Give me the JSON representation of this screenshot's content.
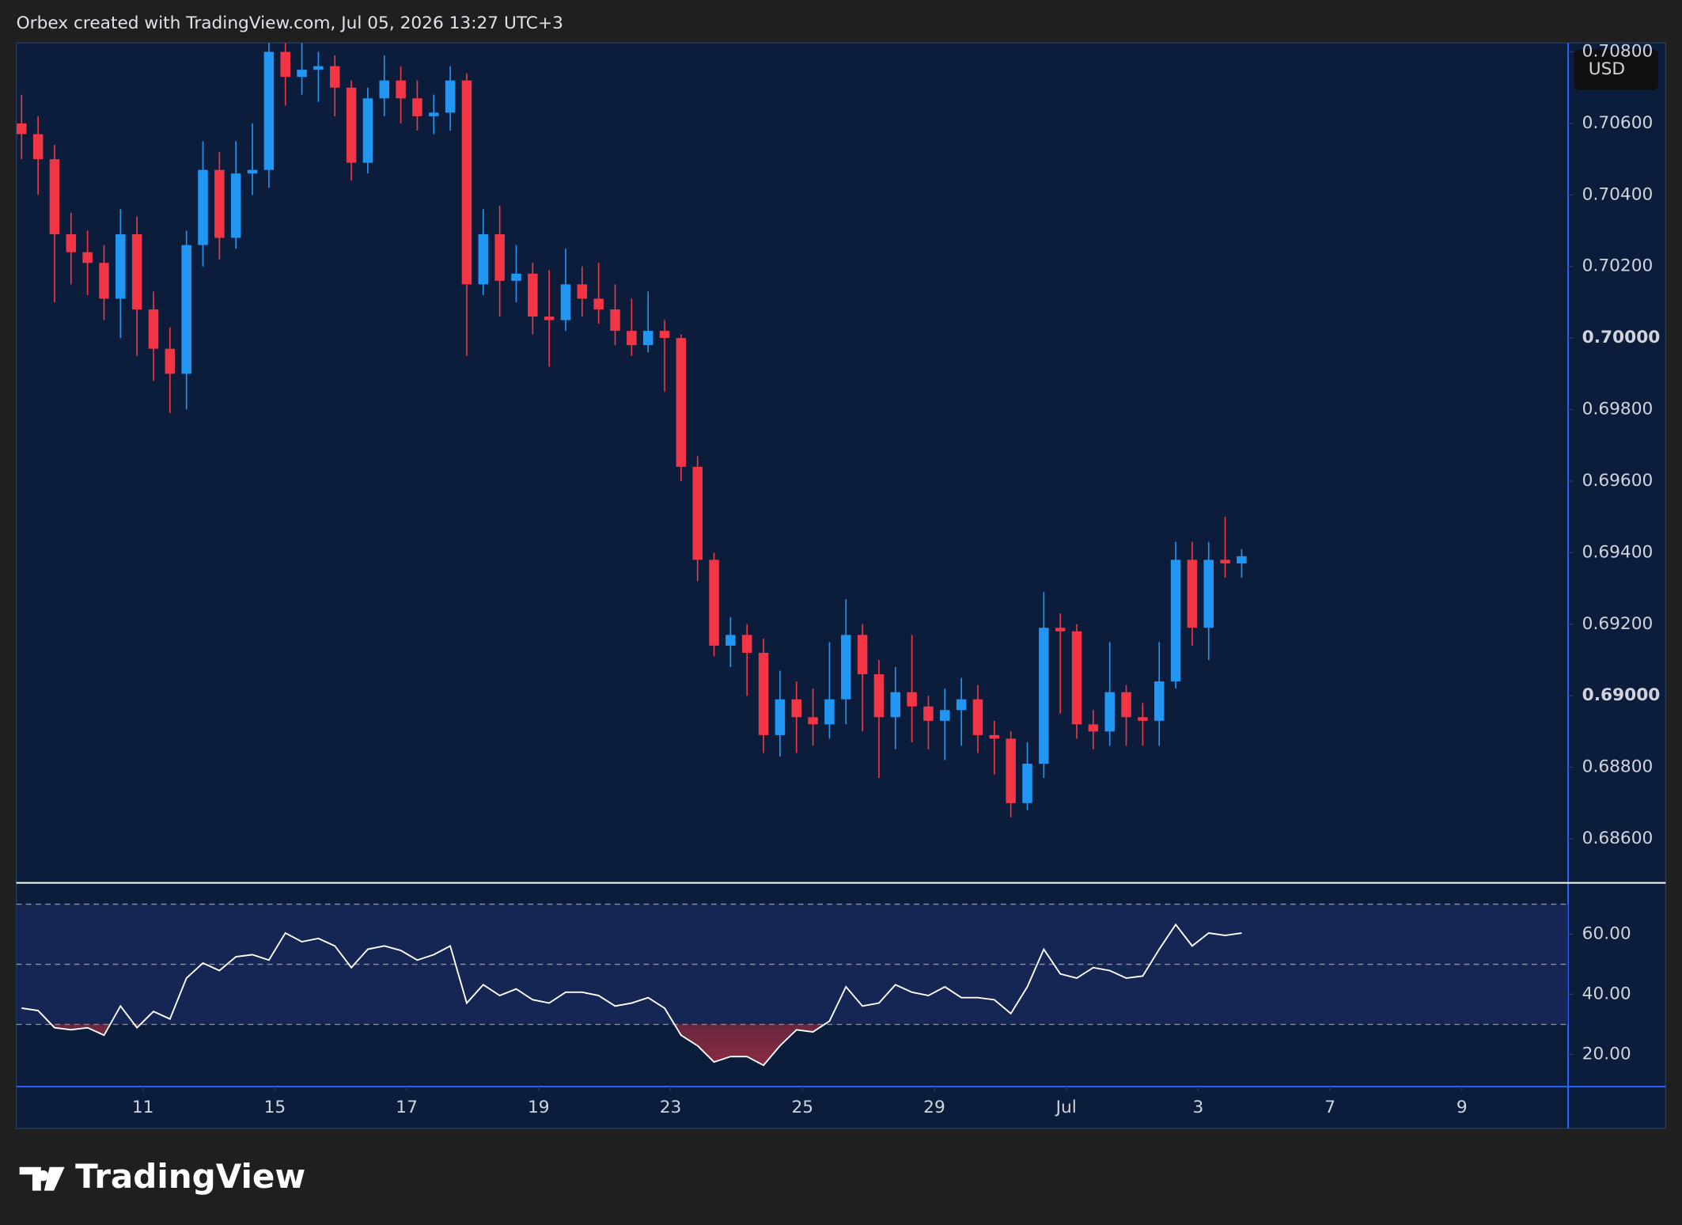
{
  "header": "Orbex created with TradingView.com, Jul 05, 2026 13:27 UTC+3",
  "brand": "TradingView",
  "chart_data": [
    {
      "type": "candlestick",
      "currency": "USD",
      "up_color": "#2196f3",
      "down_color": "#f23645",
      "x": [
        -1.84,
        -1.59,
        -1.34,
        -1.09,
        -0.84,
        -0.59,
        -0.34,
        -0.09,
        0.16,
        0.41,
        0.66,
        0.91,
        1.16,
        1.41,
        1.66,
        1.91,
        2.16,
        2.41,
        2.66,
        2.91,
        3.16,
        3.41,
        3.66,
        3.91,
        4.16,
        4.41,
        4.66,
        4.91,
        5.16,
        5.41,
        5.66,
        5.91,
        6.16,
        6.41,
        6.66,
        6.91,
        7.16,
        7.41,
        7.66,
        7.91,
        8.16,
        8.41,
        8.66,
        8.91,
        9.16,
        9.41,
        9.66,
        9.91,
        10.16,
        10.41,
        10.66,
        10.91,
        11.16,
        11.41,
        11.66,
        11.91,
        12.16,
        12.41,
        12.66,
        12.91,
        13.16,
        13.41,
        13.66,
        13.91,
        14.16,
        14.41,
        14.66,
        14.91,
        15.16,
        15.41,
        15.66,
        15.91,
        16.16,
        16.41,
        16.66
      ],
      "open": [
        0.706,
        0.7057,
        0.705,
        0.7029,
        0.7024,
        0.7021,
        0.7011,
        0.7029,
        0.7008,
        0.6997,
        0.699,
        0.7026,
        0.7047,
        0.7028,
        0.7046,
        0.7047,
        0.708,
        0.7073,
        0.7075,
        0.7076,
        0.707,
        0.7049,
        0.7067,
        0.7072,
        0.7067,
        0.7062,
        0.7063,
        0.7072,
        0.7015,
        0.7029,
        0.7016,
        0.7018,
        0.7006,
        0.7005,
        0.7015,
        0.7011,
        0.7008,
        0.7002,
        0.6998,
        0.7002,
        0.7,
        0.6964,
        0.6938,
        0.6914,
        0.6917,
        0.6912,
        0.6889,
        0.6899,
        0.6894,
        0.6892,
        0.6899,
        0.6917,
        0.6906,
        0.6894,
        0.6901,
        0.6897,
        0.6893,
        0.6896,
        0.6899,
        0.6889,
        0.6888,
        0.687,
        0.6881,
        0.6919,
        0.6918,
        0.6892,
        0.689,
        0.6901,
        0.6894,
        0.6893,
        0.6904,
        0.6938,
        0.6919,
        0.6938,
        0.6937
      ],
      "high": [
        0.7068,
        0.7062,
        0.7054,
        0.7035,
        0.703,
        0.7026,
        0.7036,
        0.7034,
        0.7013,
        0.7003,
        0.703,
        0.7055,
        0.7052,
        0.7055,
        0.706,
        0.709,
        0.7088,
        0.709,
        0.708,
        0.7079,
        0.7072,
        0.707,
        0.7079,
        0.7076,
        0.7072,
        0.7068,
        0.7076,
        0.7074,
        0.7036,
        0.7037,
        0.7026,
        0.7021,
        0.7019,
        0.7025,
        0.702,
        0.7021,
        0.7015,
        0.7011,
        0.7013,
        0.7005,
        0.7001,
        0.6967,
        0.694,
        0.6922,
        0.692,
        0.6916,
        0.6907,
        0.6904,
        0.6902,
        0.6915,
        0.6927,
        0.692,
        0.691,
        0.6908,
        0.6917,
        0.69,
        0.6902,
        0.6905,
        0.6903,
        0.6893,
        0.689,
        0.6887,
        0.6929,
        0.6923,
        0.692,
        0.6896,
        0.6915,
        0.6903,
        0.6898,
        0.6915,
        0.6943,
        0.6943,
        0.6943,
        0.695,
        0.6941
      ],
      "low": [
        0.705,
        0.704,
        0.701,
        0.7015,
        0.7012,
        0.7005,
        0.7,
        0.6995,
        0.6988,
        0.6979,
        0.698,
        0.702,
        0.7022,
        0.7025,
        0.704,
        0.7042,
        0.7065,
        0.7068,
        0.7066,
        0.7062,
        0.7044,
        0.7046,
        0.7062,
        0.706,
        0.7058,
        0.7057,
        0.7058,
        0.6995,
        0.7012,
        0.7006,
        0.701,
        0.7001,
        0.6992,
        0.7002,
        0.7006,
        0.7004,
        0.6998,
        0.6995,
        0.6996,
        0.6985,
        0.696,
        0.6932,
        0.6911,
        0.6908,
        0.69,
        0.6884,
        0.6883,
        0.6884,
        0.6886,
        0.6888,
        0.6892,
        0.689,
        0.6877,
        0.6885,
        0.6887,
        0.6885,
        0.6882,
        0.6886,
        0.6884,
        0.6878,
        0.6866,
        0.6868,
        0.6877,
        0.6895,
        0.6888,
        0.6885,
        0.6886,
        0.6886,
        0.6886,
        0.6886,
        0.6902,
        0.6914,
        0.691,
        0.6933,
        0.6933
      ],
      "close": [
        0.7057,
        0.705,
        0.7029,
        0.7024,
        0.7021,
        0.7011,
        0.7029,
        0.7008,
        0.6997,
        0.699,
        0.7026,
        0.7047,
        0.7028,
        0.7046,
        0.7047,
        0.708,
        0.7073,
        0.7075,
        0.7076,
        0.707,
        0.7049,
        0.7067,
        0.7072,
        0.7067,
        0.7062,
        0.7063,
        0.7072,
        0.7015,
        0.7029,
        0.7016,
        0.7018,
        0.7006,
        0.7005,
        0.7015,
        0.7011,
        0.7008,
        0.7002,
        0.6998,
        0.7002,
        0.7,
        0.6964,
        0.6938,
        0.6914,
        0.6917,
        0.6912,
        0.6889,
        0.6899,
        0.6894,
        0.6892,
        0.6899,
        0.6917,
        0.6906,
        0.6894,
        0.6901,
        0.6897,
        0.6893,
        0.6896,
        0.6899,
        0.6889,
        0.6888,
        0.687,
        0.6881,
        0.6919,
        0.6918,
        0.6892,
        0.689,
        0.6901,
        0.6894,
        0.6893,
        0.6904,
        0.6938,
        0.6919,
        0.6938,
        0.6937,
        0.6939
      ],
      "xlim": [
        -1.92,
        21.61
      ],
      "xticks": [
        {
          "value": 0,
          "label": "11"
        },
        {
          "value": 2,
          "label": "15"
        },
        {
          "value": 4,
          "label": "17"
        },
        {
          "value": 6,
          "label": "19"
        },
        {
          "value": 8,
          "label": "23"
        },
        {
          "value": 10,
          "label": "25"
        },
        {
          "value": 12,
          "label": "29"
        },
        {
          "value": 14,
          "label": "Jul"
        },
        {
          "value": 16,
          "label": "3"
        },
        {
          "value": 18,
          "label": "7"
        },
        {
          "value": 20,
          "label": "9"
        }
      ],
      "ylim": [
        0.6848,
        0.70825
      ],
      "yticks": [
        {
          "value": 0.708,
          "label": "0.70800"
        },
        {
          "value": 0.706,
          "label": "0.70600"
        },
        {
          "value": 0.704,
          "label": "0.70400"
        },
        {
          "value": 0.702,
          "label": "0.70200"
        },
        {
          "value": 0.7,
          "label": "0.70000"
        },
        {
          "value": 0.698,
          "label": "0.69800"
        },
        {
          "value": 0.696,
          "label": "0.69600"
        },
        {
          "value": 0.694,
          "label": "0.69400"
        },
        {
          "value": 0.692,
          "label": "0.69200"
        },
        {
          "value": 0.69,
          "label": "0.69000"
        },
        {
          "value": 0.688,
          "label": "0.68800"
        },
        {
          "value": 0.686,
          "label": "0.68600"
        }
      ]
    },
    {
      "type": "line",
      "color": "#ffffff",
      "oversold_color": "#f23645",
      "x": [
        -1.84,
        -1.59,
        -1.34,
        -1.09,
        -0.84,
        -0.59,
        -0.34,
        -0.09,
        0.16,
        0.41,
        0.66,
        0.91,
        1.16,
        1.41,
        1.66,
        1.91,
        2.16,
        2.41,
        2.66,
        2.91,
        3.16,
        3.41,
        3.66,
        3.91,
        4.16,
        4.41,
        4.66,
        4.91,
        5.16,
        5.41,
        5.66,
        5.91,
        6.16,
        6.41,
        6.66,
        6.91,
        7.16,
        7.41,
        7.66,
        7.91,
        8.16,
        8.41,
        8.66,
        8.91,
        9.16,
        9.41,
        9.66,
        9.91,
        10.16,
        10.41,
        10.66,
        10.91,
        11.16,
        11.41,
        11.66,
        11.91,
        12.16,
        12.41,
        12.66,
        12.91,
        13.16,
        13.41,
        13.66,
        13.91,
        14.16,
        14.41,
        14.66,
        14.91,
        15.16,
        15.41,
        15.66,
        15.91,
        16.16,
        16.41,
        16.66
      ],
      "values": [
        35.4,
        34.6,
        28.9,
        28.2,
        28.9,
        26.4,
        36.1,
        28.9,
        34.3,
        31.8,
        45.4,
        50.4,
        47.9,
        52.5,
        53.2,
        51.4,
        60.4,
        57.5,
        58.6,
        56.1,
        48.9,
        55.0,
        56.1,
        54.6,
        51.4,
        53.2,
        56.1,
        37.1,
        43.2,
        39.6,
        41.8,
        38.2,
        37.1,
        40.7,
        40.7,
        39.6,
        36.1,
        37.1,
        38.9,
        35.4,
        26.4,
        22.9,
        17.5,
        19.3,
        19.3,
        16.4,
        22.9,
        28.2,
        27.5,
        31.1,
        42.5,
        36.1,
        37.1,
        43.2,
        40.7,
        39.6,
        42.5,
        38.9,
        38.9,
        38.2,
        33.6,
        42.5,
        55.0,
        46.8,
        45.4,
        48.9,
        47.9,
        45.4,
        46.1,
        55.0,
        63.2,
        56.1,
        60.4,
        59.6,
        60.4
      ],
      "xlim": [
        -1.92,
        21.61
      ],
      "ylim": [
        9.3,
        77.1
      ],
      "yticks": [
        {
          "value": 60,
          "label": "60.00"
        },
        {
          "value": 40,
          "label": "40.00"
        },
        {
          "value": 20,
          "label": "20.00"
        }
      ],
      "levels": [
        70,
        50,
        30
      ]
    }
  ]
}
